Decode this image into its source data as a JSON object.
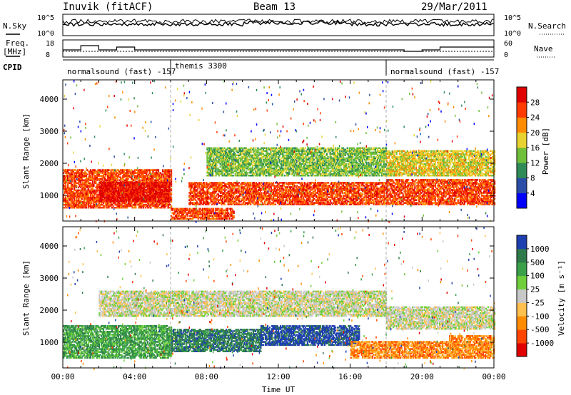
{
  "header": {
    "station": "Inuvik (fitACF)",
    "beam": "Beam 13",
    "date": "29/Mar/2011"
  },
  "panels": {
    "nsky_label": "N.Sky",
    "nsearch_label": "N.Search",
    "nsky_ticks": [
      "10^5",
      "10^0"
    ],
    "nsearch_ticks": [
      "10^5",
      "10^0"
    ],
    "freq_label_top": "Freq.",
    "freq_label_unit": "[MHz]",
    "freq_ticks": [
      "18",
      "8"
    ],
    "nave_label": "Nave",
    "nave_ticks": [
      "60",
      "0"
    ],
    "cpid_label": "CPID",
    "cpid_segments": [
      {
        "text": "normalsound (fast) -157",
        "start_hour": 0,
        "end_hour": 6
      },
      {
        "text": "themis 3300",
        "start_hour": 6,
        "end_hour": 18
      },
      {
        "text": "normalsound (fast) -157",
        "start_hour": 18,
        "end_hour": 24
      }
    ]
  },
  "chart_data": [
    {
      "type": "heatmap",
      "name": "power",
      "ylabel": "Slant Range [km]",
      "xlabel": "",
      "ylim": [
        200,
        4600
      ],
      "yticks": [
        "1000",
        "2000",
        "3000",
        "4000"
      ],
      "xlim": [
        0,
        24
      ],
      "colorbar_label": "Power [dB]",
      "colorbar_ticks": [
        "28",
        "24",
        "20",
        "16",
        "12",
        "8",
        "4"
      ],
      "colorbar_colors": [
        "#0000ff",
        "#2a4ea8",
        "#2e8b57",
        "#6fbf3a",
        "#e8d230",
        "#ff8c00",
        "#ff3b00",
        "#e00000"
      ],
      "bands": [
        {
          "start": 0,
          "end": 6,
          "range": [
            600,
            1800
          ],
          "level": 6
        },
        {
          "start": 2,
          "end": 6,
          "range": [
            800,
            1400
          ],
          "level": 7
        },
        {
          "start": 6,
          "end": 9.5,
          "range": [
            250,
            600
          ],
          "level": 6
        },
        {
          "start": 7,
          "end": 18,
          "range": [
            700,
            1400
          ],
          "level": 6
        },
        {
          "start": 8,
          "end": 18,
          "range": [
            1600,
            2500
          ],
          "level": 3
        },
        {
          "start": 18,
          "end": 24,
          "range": [
            700,
            1500
          ],
          "level": 6
        },
        {
          "start": 18,
          "end": 24,
          "range": [
            1600,
            2400
          ],
          "level": 4
        }
      ]
    },
    {
      "type": "heatmap",
      "name": "velocity",
      "ylabel": "Slant Range [km]",
      "xlabel": "Time UT",
      "ylim": [
        200,
        4600
      ],
      "yticks": [
        "1000",
        "2000",
        "3000",
        "4000"
      ],
      "xlim": [
        0,
        24
      ],
      "xticks": [
        "00:00",
        "04:00",
        "08:00",
        "12:00",
        "16:00",
        "20:00",
        "00:00"
      ],
      "colorbar_label": "Velocity [m s⁻¹]",
      "colorbar_ticks": [
        "1000",
        "500",
        "100",
        "25",
        "-25",
        "-100",
        "-500",
        "-1000"
      ],
      "colorbar_colors": [
        "#e00000",
        "#ff4500",
        "#ff8c00",
        "#ffc04d",
        "#c8c8c8",
        "#6fcf3a",
        "#3aa04a",
        "#2e7a4a",
        "#1e3fb0"
      ],
      "bands": [
        {
          "start": 0,
          "end": 6,
          "range": [
            500,
            1500
          ],
          "level": 6
        },
        {
          "start": 2,
          "end": 8,
          "range": [
            1800,
            2600
          ],
          "level": 4
        },
        {
          "start": 6,
          "end": 11,
          "range": [
            700,
            1400
          ],
          "level": 7
        },
        {
          "start": 11,
          "end": 16.5,
          "range": [
            900,
            1500
          ],
          "level": 8
        },
        {
          "start": 8,
          "end": 18,
          "range": [
            1800,
            2600
          ],
          "level": 4
        },
        {
          "start": 16,
          "end": 22,
          "range": [
            500,
            1000
          ],
          "level": 2
        },
        {
          "start": 18,
          "end": 24,
          "range": [
            1400,
            2100
          ],
          "level": 4
        },
        {
          "start": 21.5,
          "end": 24,
          "range": [
            500,
            1200
          ],
          "level": 2
        }
      ]
    }
  ]
}
